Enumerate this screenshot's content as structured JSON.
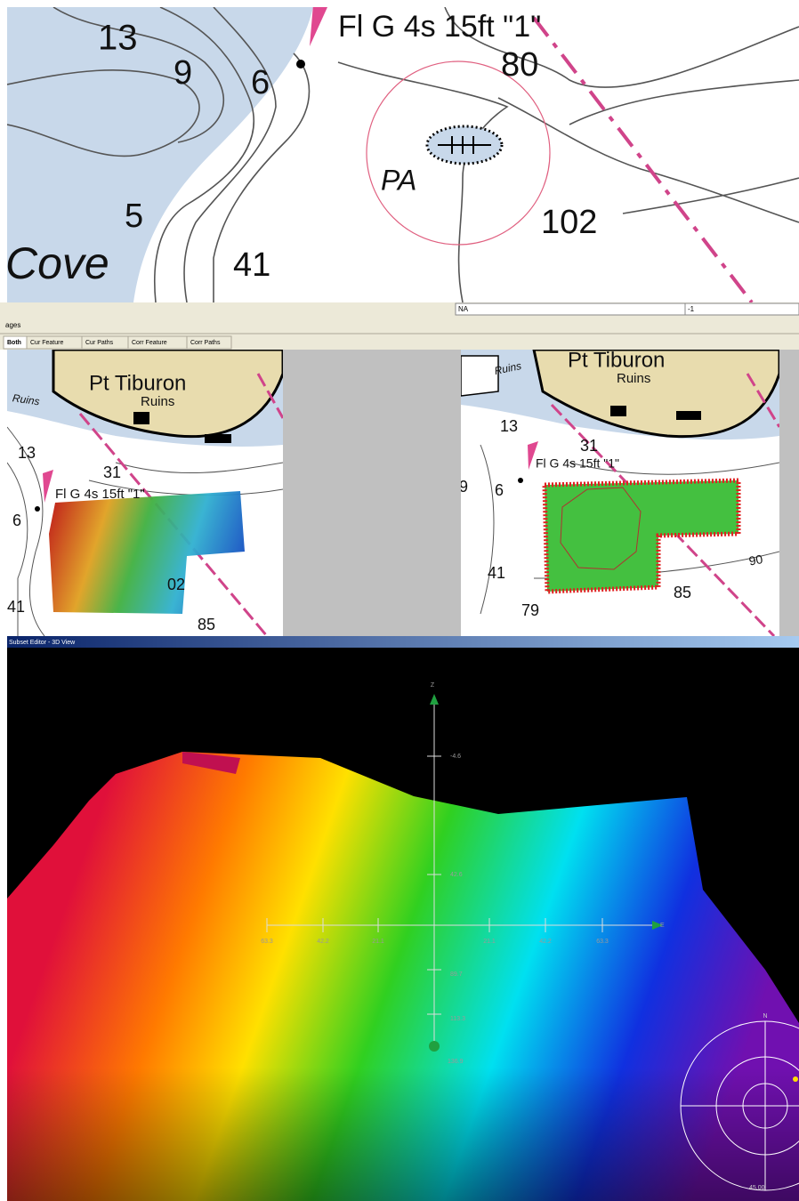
{
  "top_chart": {
    "soundings": [
      "13",
      "9",
      "6",
      "80",
      "5",
      "41",
      "102"
    ],
    "light_label": "Fl G 4s 15ft \"1\"",
    "area_label": "PA",
    "place_label": "Cove"
  },
  "status_bar": {
    "field_1": "NA",
    "field_2": "-1"
  },
  "panel_header": {
    "title": "ages",
    "tabs": [
      "Both",
      "Cur Feature",
      "Cur Paths",
      "Corr Feature",
      "Corr Paths"
    ]
  },
  "left_map": {
    "place_label": "Pt Tiburon",
    "ruins_labels": [
      "Ruins",
      "Ruins"
    ],
    "soundings": [
      "13",
      "31",
      "6",
      "02",
      "41",
      "85"
    ],
    "light_label": "Fl G 4s 15ft \"1\""
  },
  "right_map": {
    "place_label": "Pt Tiburon",
    "ruins_labels": [
      "Ruins",
      "Ruins"
    ],
    "soundings": [
      "13",
      "31",
      "9",
      "6",
      "41",
      "79",
      "85",
      "90"
    ],
    "light_label": "Fl G 4s 15ft \"1\""
  },
  "view_3d": {
    "title": "Subset Editor - 3D View",
    "z_axis_label": "Z",
    "e_axis_label": "E",
    "z_ticks": [
      "-4.6",
      "42.6",
      "89.7",
      "113.3",
      "136.9"
    ],
    "e_ticks": [
      "63.3",
      "42.2",
      "21.1",
      "21.1",
      "42.2",
      "63.3"
    ],
    "compass_label": "N",
    "compass_value": "45.00"
  }
}
